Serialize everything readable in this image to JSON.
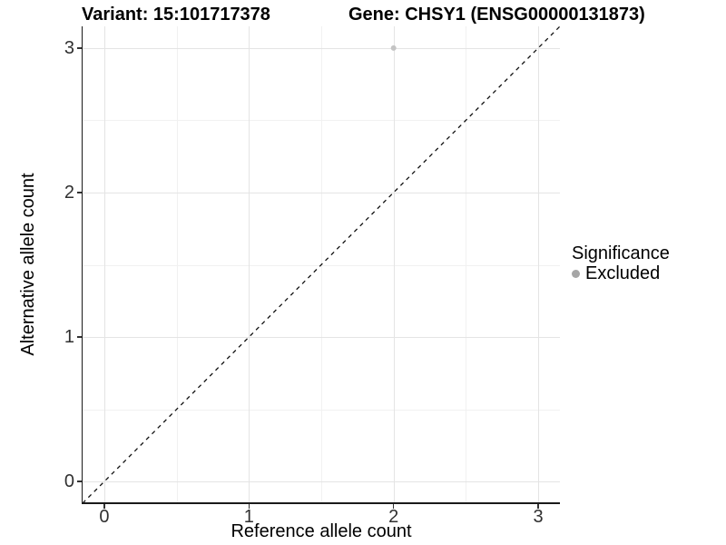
{
  "header": {
    "variant_title": "Variant: 15:101717378",
    "gene_title": "Gene: CHSY1 (ENSG00000131873)"
  },
  "chart_data": {
    "type": "scatter",
    "title_left": "Variant: 15:101717378",
    "title_right": "Gene: CHSY1 (ENSG00000131873)",
    "xlabel": "Reference allele count",
    "ylabel": "Alternative allele count",
    "xlim": [
      -0.15,
      3.15
    ],
    "ylim": [
      -0.15,
      3.15
    ],
    "x_ticks": [
      0,
      1,
      2,
      3
    ],
    "y_ticks": [
      0,
      1,
      2,
      3
    ],
    "x_minor_ticks": [
      0.5,
      1.5,
      2.5
    ],
    "y_minor_ticks": [
      0.5,
      1.5,
      2.5
    ],
    "grid": true,
    "points": [
      {
        "x": 2,
        "y": 3,
        "series": "Excluded"
      }
    ],
    "reference_line": {
      "style": "dashed",
      "from": [
        -0.15,
        -0.15
      ],
      "to": [
        3.15,
        3.15
      ],
      "color": "#111111"
    },
    "legend": {
      "title": "Significance",
      "position": "right",
      "entries": [
        {
          "label": "Excluded",
          "color": "#a6a6a6"
        }
      ]
    },
    "style": {
      "point_color": "#c4c4c4",
      "point_radius": 3,
      "major_grid_color": "#e4e4e4",
      "minor_grid_color": "#f1f1f1",
      "axis_line_color": "#1a1a1a"
    }
  }
}
